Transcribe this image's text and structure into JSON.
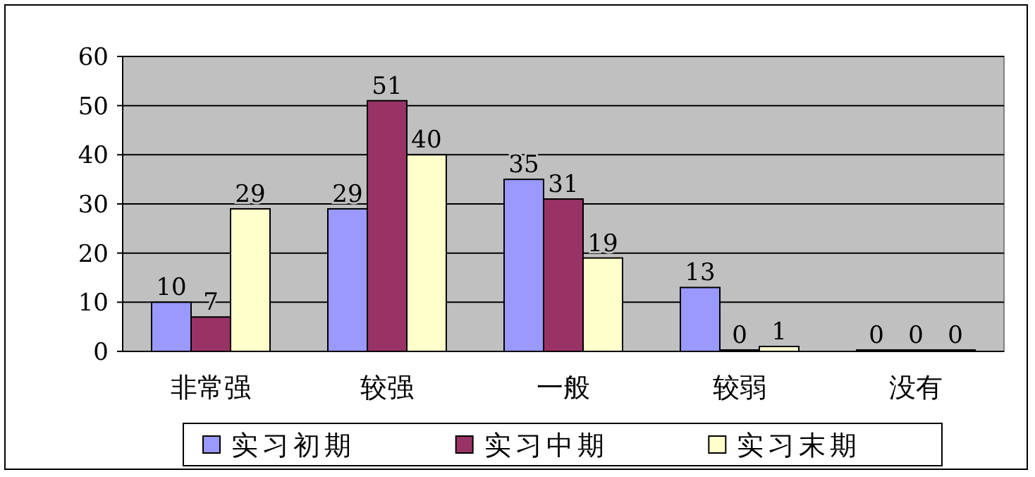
{
  "chart_data": {
    "type": "bar",
    "categories": [
      "非常强",
      "较强",
      "一般",
      "较弱",
      "没有"
    ],
    "series": [
      {
        "name": "实习初期",
        "color": "#9999ff",
        "values": [
          10,
          29,
          35,
          13,
          0
        ]
      },
      {
        "name": "实习中期",
        "color": "#993366",
        "values": [
          7,
          51,
          31,
          0,
          0
        ]
      },
      {
        "name": "实习末期",
        "color": "#ffffcc",
        "values": [
          29,
          40,
          19,
          1,
          0
        ]
      }
    ],
    "ylim": [
      0,
      60
    ],
    "yticks": [
      0,
      10,
      20,
      30,
      40,
      50,
      60
    ],
    "grid": "y",
    "legend": "bottom",
    "data_labels": true
  }
}
